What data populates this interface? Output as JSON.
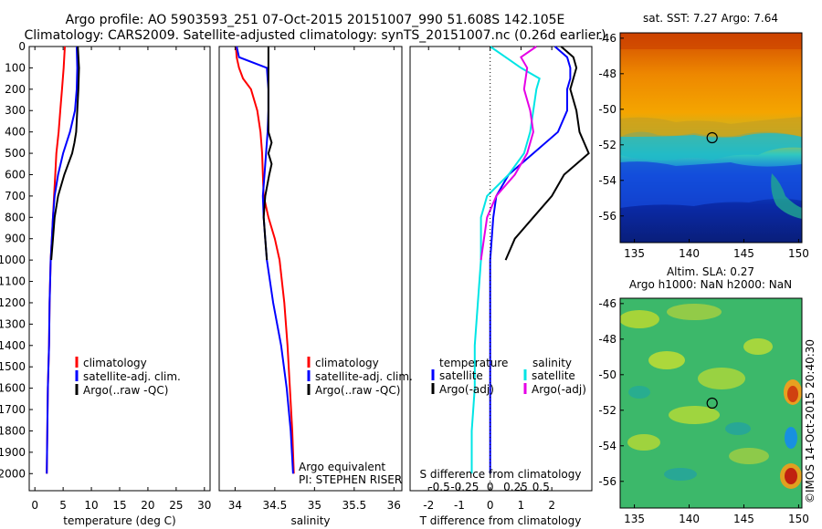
{
  "header": {
    "line1": "Argo profile: AO 5903593_251 07-Oct-2015 20151007_990 51.608S 142.105E",
    "line2": "Climatology: CARS2009. Satellite-adjusted climatology: synTS_20151007.nc (0.26d earlier)"
  },
  "panel_temp": {
    "xlabel": "temperature (deg C)",
    "legend": [
      "climatology",
      "satellite-adj. clim.",
      "Argo(..raw -QC)"
    ]
  },
  "panel_sal": {
    "xlabel": "salinity",
    "legend": [
      "climatology",
      "satellite-adj. clim.",
      "Argo(..raw -QC)"
    ],
    "note1": "Argo equivalent",
    "note2": "PI: STEPHEN RISER"
  },
  "panel_diff": {
    "xlabel": "T difference from climatology",
    "s_label": "S difference from climatology",
    "legend_temp_title": "temperature",
    "legend_sal_title": "salinity",
    "legend_temp": [
      "satellite",
      "Argo(-adj)"
    ],
    "legend_sal": [
      "satellite",
      "Argo(-adj)"
    ]
  },
  "map_sst": {
    "title": "sat. SST: 7.27 Argo: 7.64"
  },
  "map_sla": {
    "title1": "Altim. SLA: 0.27",
    "title2": "Argo h1000: NaN h2000: NaN",
    "stamp": "©IMOS 14-Oct-2015 20:40:30"
  },
  "colors": {
    "climatology": "#ff0000",
    "satellite": "#0000ff",
    "argo": "#000000",
    "sat_sal": "#00e5e5",
    "argo_sal": "#e600e6"
  },
  "chart_data": [
    {
      "type": "line",
      "xlabel": "temperature (deg C)",
      "xlim": [
        -1,
        31
      ],
      "ylim": [
        0,
        2080
      ],
      "xticks": [
        0,
        5,
        10,
        15,
        20,
        25,
        30
      ],
      "yticks": [
        0,
        100,
        200,
        300,
        400,
        500,
        600,
        700,
        800,
        900,
        1000,
        1100,
        1200,
        1300,
        1400,
        1500,
        1600,
        1700,
        1800,
        1900,
        2000
      ],
      "series": [
        {
          "name": "climatology",
          "color": "#ff0000",
          "depth": [
            0,
            100,
            200,
            300,
            400,
            500,
            600,
            700,
            800,
            900,
            1000,
            1200,
            1400,
            1600,
            1800,
            2000
          ],
          "values": [
            5.3,
            5.1,
            4.8,
            4.5,
            4.2,
            3.8,
            3.6,
            3.4,
            3.2,
            3.0,
            2.8,
            2.6,
            2.5,
            2.3,
            2.2,
            2.1
          ]
        },
        {
          "name": "satellite-adj. clim.",
          "color": "#0000ff",
          "depth": [
            0,
            100,
            200,
            300,
            400,
            500,
            600,
            700,
            800,
            900,
            1000,
            1200,
            1400,
            1600,
            1800,
            2000
          ],
          "values": [
            7.4,
            7.5,
            7.4,
            7.1,
            6.2,
            5.0,
            4.1,
            3.5,
            3.2,
            3.0,
            2.8,
            2.6,
            2.5,
            2.3,
            2.2,
            2.1
          ]
        },
        {
          "name": "Argo(..raw -QC)",
          "color": "#000000",
          "depth": [
            0,
            100,
            200,
            300,
            400,
            450,
            500,
            550,
            600,
            700,
            800,
            900,
            1000
          ],
          "values": [
            7.6,
            7.8,
            7.7,
            7.5,
            7.3,
            7.0,
            6.6,
            5.9,
            5.2,
            4.1,
            3.5,
            3.2,
            2.9
          ]
        }
      ]
    },
    {
      "type": "line",
      "xlabel": "salinity",
      "xlim": [
        33.8,
        36.1
      ],
      "ylim": [
        0,
        2080
      ],
      "xticks": [
        34,
        34.5,
        35,
        35.5,
        36
      ],
      "series": [
        {
          "name": "climatology",
          "color": "#ff0000",
          "depth": [
            0,
            50,
            100,
            150,
            200,
            300,
            400,
            500,
            600,
            700,
            800,
            900,
            1000,
            1200,
            1400,
            1600,
            1800,
            2000
          ],
          "values": [
            34.01,
            34.02,
            34.05,
            34.1,
            34.2,
            34.28,
            34.32,
            34.34,
            34.35,
            34.36,
            34.42,
            34.5,
            34.56,
            34.62,
            34.66,
            34.69,
            34.72,
            34.74
          ]
        },
        {
          "name": "satellite-adj. clim.",
          "color": "#0000ff",
          "depth": [
            0,
            50,
            100,
            150,
            200,
            300,
            400,
            500,
            600,
            700,
            800,
            900,
            1000,
            1200,
            1400,
            1600,
            1800,
            2000
          ],
          "values": [
            34.02,
            34.05,
            34.4,
            34.41,
            34.42,
            34.42,
            34.41,
            34.39,
            34.37,
            34.35,
            34.36,
            34.38,
            34.4,
            34.48,
            34.58,
            34.65,
            34.7,
            34.73
          ]
        },
        {
          "name": "Argo(..raw -QC)",
          "color": "#000000",
          "depth": [
            0,
            100,
            200,
            300,
            400,
            450,
            500,
            550,
            600,
            700,
            800,
            900,
            1000
          ],
          "values": [
            34.42,
            34.42,
            34.42,
            34.42,
            34.42,
            34.46,
            34.42,
            34.46,
            34.43,
            34.38,
            34.36,
            34.38,
            34.4
          ]
        }
      ]
    },
    {
      "type": "line",
      "xlabel": "T difference from climatology",
      "xlim": [
        -2.6,
        3.3
      ],
      "ylim": [
        0,
        2080
      ],
      "xticks": [
        -2,
        -1,
        0,
        1,
        2
      ],
      "s_ticks": [
        -0.5,
        -0.25,
        0,
        0.25,
        0.5
      ],
      "series": [
        {
          "name": "temperature satellite",
          "color": "#0000ff",
          "depth": [
            0,
            50,
            100,
            150,
            200,
            300,
            400,
            500,
            600,
            700,
            800,
            900,
            1000,
            1200,
            1400,
            1600,
            1800,
            2000
          ],
          "values": [
            2.1,
            2.5,
            2.6,
            2.6,
            2.5,
            2.5,
            2.2,
            1.4,
            0.6,
            0.2,
            0.1,
            0.05,
            0.0,
            0.0,
            0.0,
            0.0,
            0.0,
            0.0
          ]
        },
        {
          "name": "temperature Argo(-adj)",
          "color": "#000000",
          "depth": [
            0,
            50,
            100,
            200,
            300,
            400,
            500,
            600,
            700,
            800,
            900,
            1000
          ],
          "values": [
            2.3,
            2.7,
            2.8,
            2.6,
            2.8,
            2.9,
            3.2,
            2.4,
            2.0,
            1.4,
            0.8,
            0.5
          ]
        },
        {
          "name": "salinity satellite",
          "color": "#00e5e5",
          "depth": [
            0,
            50,
            100,
            150,
            200,
            300,
            400,
            500,
            600,
            700,
            800,
            900,
            1000,
            1200,
            1400,
            1600,
            1800,
            2000
          ],
          "values": [
            0.0,
            0.5,
            1.0,
            1.6,
            1.5,
            1.4,
            1.3,
            1.1,
            0.6,
            -0.1,
            -0.3,
            -0.3,
            -0.3,
            -0.4,
            -0.5,
            -0.5,
            -0.6,
            -0.6
          ]
        },
        {
          "name": "salinity Argo(-adj)",
          "color": "#e600e6",
          "depth": [
            0,
            50,
            100,
            200,
            300,
            400,
            500,
            600,
            700,
            800,
            900,
            1000
          ],
          "values": [
            1.5,
            1.0,
            1.2,
            1.1,
            1.3,
            1.4,
            1.2,
            0.8,
            0.2,
            -0.1,
            -0.2,
            -0.3
          ]
        }
      ]
    },
    {
      "type": "heatmap",
      "title": "sat. SST: 7.27 Argo: 7.64",
      "xticks": [
        135,
        140,
        145,
        150
      ],
      "yticks": [
        -46,
        -48,
        -50,
        -52,
        -54,
        -56
      ],
      "xlim": [
        133.7,
        150.3
      ],
      "ylim": [
        -57.5,
        -45.7
      ],
      "marker": {
        "lon": 142.1,
        "lat": -51.6
      }
    },
    {
      "type": "heatmap",
      "title": "Altim. SLA: 0.27",
      "xticks": [
        135,
        140,
        145,
        150
      ],
      "yticks": [
        -46,
        -48,
        -50,
        -52,
        -54,
        -56
      ],
      "xlim": [
        133.7,
        150.3
      ],
      "ylim": [
        -57.5,
        -45.7
      ],
      "marker": {
        "lon": 142.1,
        "lat": -51.6
      }
    }
  ]
}
